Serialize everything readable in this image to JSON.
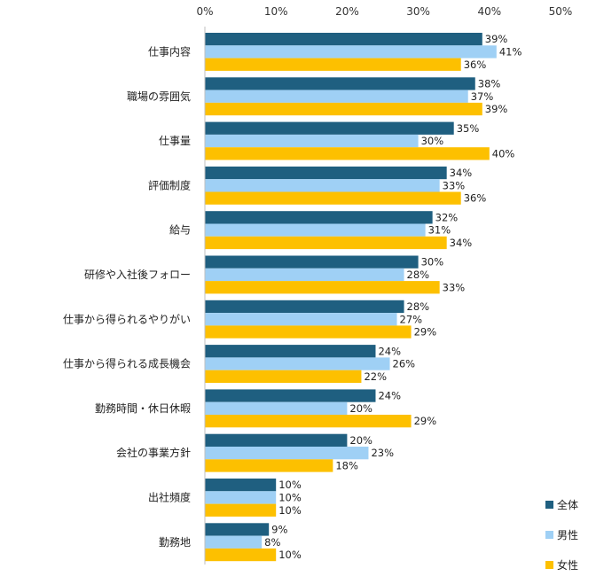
{
  "chart_data": {
    "type": "bar",
    "orientation": "horizontal",
    "title": "",
    "xlabel": "",
    "ylabel": "",
    "xlim": [
      0,
      50
    ],
    "x_ticks": [
      0,
      10,
      20,
      30,
      40,
      50
    ],
    "tick_format": "{v}%",
    "value_format": "{v}%",
    "grid": false,
    "legend_position": "bottom-right",
    "categories": [
      "仕事内容",
      "職場の雰囲気",
      "仕事量",
      "評価制度",
      "給与",
      "研修や入社後フォロー",
      "仕事から得られるやりがい",
      "仕事から得られる成長機会",
      "勤務時間・休日休暇",
      "会社の事業方針",
      "出社頻度",
      "勤務地"
    ],
    "series": [
      {
        "name": "全体",
        "color": "#1f5f80",
        "values": [
          39,
          38,
          35,
          34,
          32,
          30,
          28,
          24,
          24,
          20,
          10,
          9
        ]
      },
      {
        "name": "男性",
        "color": "#9fd0f5",
        "values": [
          41,
          37,
          30,
          33,
          31,
          28,
          27,
          26,
          20,
          23,
          10,
          8
        ]
      },
      {
        "name": "女性",
        "color": "#fdc000",
        "values": [
          36,
          39,
          40,
          36,
          34,
          33,
          29,
          22,
          29,
          18,
          10,
          10
        ]
      }
    ]
  }
}
